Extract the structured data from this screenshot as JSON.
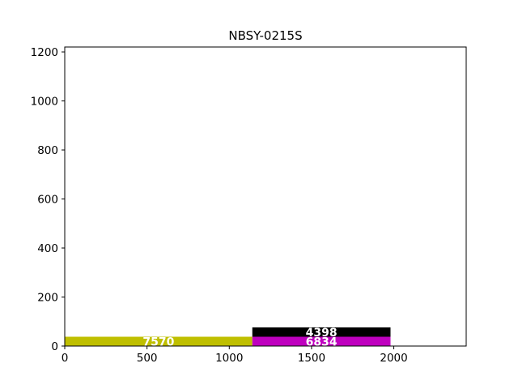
{
  "chart_data": {
    "type": "bar",
    "orientation": "stacked-horizontal-blocks",
    "title": "NBSY-0215S",
    "xlabel": "",
    "ylabel": "",
    "xlim": [
      0,
      2440
    ],
    "ylim": [
      0,
      1220
    ],
    "xticks": [
      0,
      500,
      1000,
      1500,
      2000
    ],
    "yticks": [
      0,
      200,
      400,
      600,
      800,
      1000,
      1200
    ],
    "grid": false,
    "legend": "none",
    "bars": [
      {
        "label": "7570",
        "x_start": 0,
        "x_end": 1140,
        "y_start": 0,
        "y_end": 38,
        "color": "#bfbf00"
      },
      {
        "label": "6834",
        "x_start": 1140,
        "x_end": 1980,
        "y_start": 0,
        "y_end": 38,
        "color": "#bf00bf"
      },
      {
        "label": "4398",
        "x_start": 1140,
        "x_end": 1980,
        "y_start": 38,
        "y_end": 76,
        "color": "#000000"
      }
    ]
  }
}
